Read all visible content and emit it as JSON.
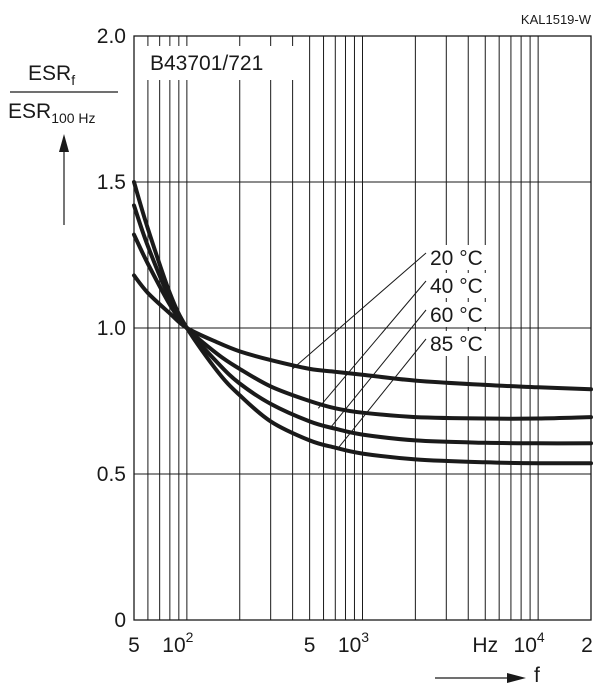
{
  "chart_data": {
    "type": "line",
    "drawing_code": "KAL1519-W",
    "title": "B43701/721",
    "ylabel": {
      "numerator_base": "ESR",
      "numerator_sub": "f",
      "denominator_base": "ESR",
      "denominator_sub": "100 Hz"
    },
    "xlabel": "f",
    "x_scale": "log",
    "xlim": [
      50,
      20000
    ],
    "ylim": [
      0,
      2.0
    ],
    "grid": true,
    "y_ticks": [
      "0",
      "0.5",
      "1.0",
      "1.5",
      "2.0"
    ],
    "x_tick_labels": {
      "five_low": "5",
      "hundred_base": "10",
      "hundred_exp": "2",
      "five_high": "5",
      "thousand_base": "10",
      "thousand_exp": "3",
      "unit": "Hz",
      "tenk_base": "10",
      "tenk_exp": "4",
      "two": "2"
    },
    "series": [
      {
        "name": "20 °C",
        "x": [
          50,
          60,
          80,
          100,
          150,
          200,
          300,
          500,
          700,
          1000,
          2000,
          5000,
          10000,
          20000
        ],
        "y": [
          1.18,
          1.12,
          1.05,
          1.0,
          0.95,
          0.92,
          0.89,
          0.86,
          0.85,
          0.84,
          0.82,
          0.805,
          0.797,
          0.79
        ]
      },
      {
        "name": "40 °C",
        "x": [
          50,
          60,
          80,
          100,
          150,
          200,
          300,
          500,
          700,
          1000,
          2000,
          5000,
          10000,
          20000
        ],
        "y": [
          1.32,
          1.22,
          1.08,
          1.0,
          0.91,
          0.86,
          0.8,
          0.75,
          0.725,
          0.71,
          0.695,
          0.69,
          0.69,
          0.695
        ]
      },
      {
        "name": "60 °C",
        "x": [
          50,
          60,
          80,
          100,
          150,
          200,
          300,
          500,
          700,
          1000,
          2000,
          5000,
          10000,
          20000
        ],
        "y": [
          1.42,
          1.28,
          1.1,
          1.0,
          0.88,
          0.81,
          0.74,
          0.68,
          0.655,
          0.635,
          0.615,
          0.607,
          0.605,
          0.605
        ]
      },
      {
        "name": "85 °C",
        "x": [
          50,
          60,
          80,
          100,
          150,
          200,
          300,
          500,
          700,
          1000,
          2000,
          5000,
          10000,
          20000
        ],
        "y": [
          1.5,
          1.34,
          1.12,
          1.0,
          0.85,
          0.77,
          0.68,
          0.615,
          0.59,
          0.57,
          0.55,
          0.54,
          0.537,
          0.537
        ]
      }
    ]
  }
}
